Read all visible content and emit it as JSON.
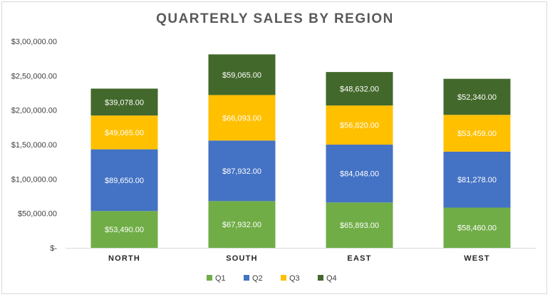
{
  "chart_data": {
    "type": "bar",
    "stacked": true,
    "title": "QUARTERLY SALES BY REGION",
    "categories": [
      "NORTH",
      "SOUTH",
      "EAST",
      "WEST"
    ],
    "series": [
      {
        "name": "Q1",
        "color": "#70ad47",
        "values": [
          53490,
          67932,
          65893,
          58460
        ],
        "labels": [
          "$53,490.00",
          "$67,932.00",
          "$65,893.00",
          "$58,460.00"
        ]
      },
      {
        "name": "Q2",
        "color": "#4472c4",
        "values": [
          89650,
          87932,
          84048,
          81278
        ],
        "labels": [
          "$89,650.00",
          "$87,932.00",
          "$84,048.00",
          "$81,278.00"
        ]
      },
      {
        "name": "Q3",
        "color": "#ffc000",
        "values": [
          49065,
          66093,
          56820,
          53459
        ],
        "labels": [
          "$49,065.00",
          "$66,093.00",
          "$56,820.00",
          "$53,459.00"
        ]
      },
      {
        "name": "Q4",
        "color": "#43682b",
        "values": [
          39078,
          59065,
          48632,
          52340
        ],
        "labels": [
          "$39,078.00",
          "$59,065.00",
          "$48,632.00",
          "$52,340.00"
        ]
      }
    ],
    "ylim": [
      0,
      300000
    ],
    "yticks": [
      0,
      50000,
      100000,
      150000,
      200000,
      250000,
      300000
    ],
    "ytick_labels": [
      "$-",
      "$50,000.00",
      "$1,00,000.00",
      "$1,50,000.00",
      "$2,00,000.00",
      "$2,50,000.00",
      "$3,00,000.00"
    ],
    "xlabel": "",
    "ylabel": "",
    "grid": false,
    "legend_position": "bottom"
  }
}
